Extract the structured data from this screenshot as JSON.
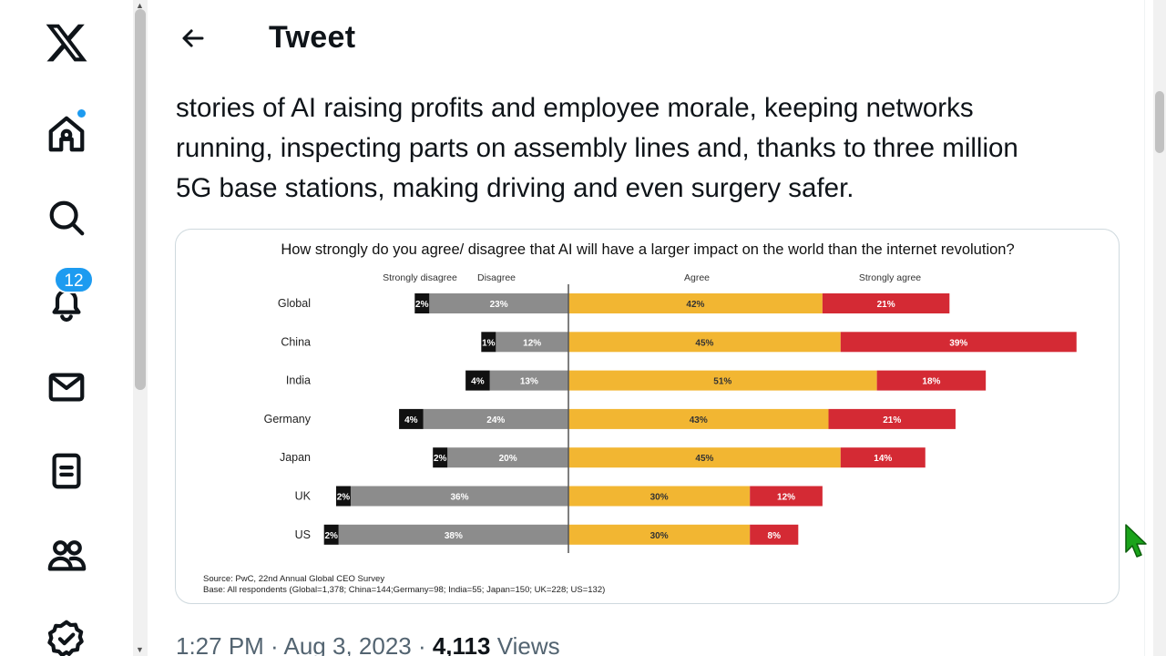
{
  "app": {
    "brand_icon": "x-logo-icon",
    "notifications_count": "12",
    "accent": "#1d9bf0"
  },
  "nav": {
    "items": [
      {
        "name": "home-icon"
      },
      {
        "name": "search-icon"
      },
      {
        "name": "bell-icon"
      },
      {
        "name": "mail-icon"
      },
      {
        "name": "lists-icon"
      },
      {
        "name": "communities-icon"
      },
      {
        "name": "verified-icon"
      }
    ]
  },
  "header": {
    "title": "Tweet"
  },
  "tweet": {
    "lines": [
      "stories of AI raising profits and employee morale, keeping networks",
      "running, inspecting parts on assembly lines and, thanks to three million",
      "5G base stations, making driving and even surgery safer."
    ],
    "time": "1:27 PM",
    "sep1": " · ",
    "date": "Aug 3, 2023",
    "sep2": " · ",
    "views_count": "4,113",
    "views_label": " Views"
  },
  "chart_data": {
    "type": "bar",
    "orientation": "horizontal-diverging-stacked",
    "title": "How strongly do you agree/ disagree that AI will have a larger impact on the world than the internet revolution?",
    "categories": [
      "Global",
      "China",
      "India",
      "Germany",
      "Japan",
      "UK",
      "US"
    ],
    "series": [
      {
        "name": "Strongly disagree",
        "color": "#111111",
        "values": [
          2,
          1,
          4,
          4,
          2,
          2,
          2
        ]
      },
      {
        "name": "Disagree",
        "color": "#8c8c8c",
        "values": [
          23,
          12,
          13,
          24,
          20,
          36,
          38
        ]
      },
      {
        "name": "Agree",
        "color": "#f2b632",
        "values": [
          42,
          45,
          51,
          43,
          45,
          30,
          30
        ]
      },
      {
        "name": "Strongly agree",
        "color": "#d42a34",
        "values": [
          21,
          39,
          18,
          21,
          14,
          12,
          8
        ]
      }
    ],
    "source": "Source: PwC, 22nd Annual Global CEO Survey",
    "base": "Base: All respondents (Global=1,378; China=144;Germany=98; India=55; Japan=150; UK=228; US=132)",
    "value_suffix": "%"
  }
}
